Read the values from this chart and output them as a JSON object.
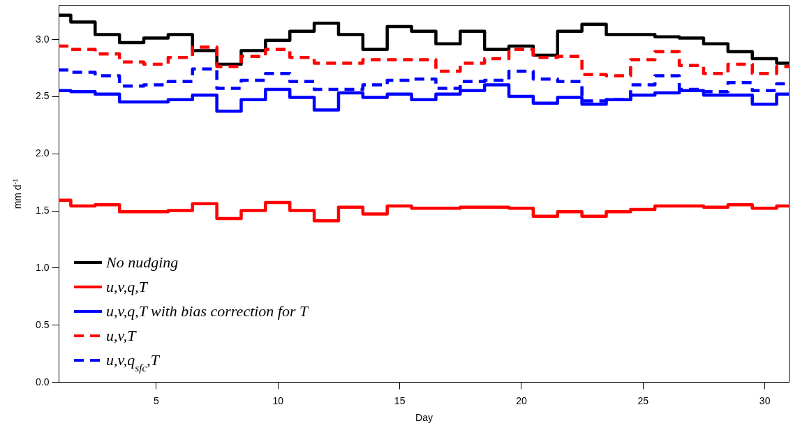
{
  "chart_data": {
    "type": "step",
    "xlabel": "Day",
    "ylabel": "mm d$^{-1}$",
    "x": [
      1,
      2,
      3,
      4,
      5,
      6,
      7,
      8,
      9,
      10,
      11,
      12,
      13,
      14,
      15,
      16,
      17,
      18,
      19,
      20,
      21,
      22,
      23,
      24,
      25,
      26,
      27,
      28,
      29,
      30,
      31
    ],
    "xlim": [
      1,
      31
    ],
    "xticks": [
      5,
      10,
      15,
      20,
      25,
      30
    ],
    "ylim": [
      0,
      3.3
    ],
    "yticks": [
      {
        "value": 0,
        "label": "0.0"
      },
      0.5,
      {
        "value": 1,
        "label": "1.0"
      },
      1.5,
      {
        "value": 2,
        "label": "2.0"
      },
      2.5,
      {
        "value": 3,
        "label": "3.0"
      }
    ],
    "grid": false,
    "legend": "bottom left",
    "series": [
      {
        "name": "No nudging",
        "color": "#000000",
        "line_style": "solid",
        "values": [
          3.21,
          3.15,
          3.04,
          2.97,
          3.01,
          3.04,
          2.9,
          2.78,
          2.9,
          2.99,
          3.07,
          3.14,
          3.04,
          2.91,
          3.11,
          3.07,
          2.96,
          3.07,
          2.91,
          2.94,
          2.86,
          3.07,
          3.13,
          3.04,
          3.04,
          3.02,
          3.01,
          2.96,
          2.89,
          2.83,
          2.79
        ]
      },
      {
        "name": "u,v,q,T",
        "color": "#ff0000",
        "line_style": "solid",
        "values": [
          1.59,
          1.54,
          1.55,
          1.49,
          1.49,
          1.5,
          1.56,
          1.43,
          1.5,
          1.57,
          1.5,
          1.41,
          1.53,
          1.47,
          1.54,
          1.52,
          1.52,
          1.53,
          1.53,
          1.52,
          1.45,
          1.49,
          1.45,
          1.49,
          1.51,
          1.54,
          1.54,
          1.53,
          1.55,
          1.52,
          1.54
        ]
      },
      {
        "name": "u,v,q,T with bias correction for T",
        "color": "#0000ff",
        "line_style": "solid",
        "values": [
          2.55,
          2.54,
          2.52,
          2.45,
          2.45,
          2.47,
          2.51,
          2.37,
          2.47,
          2.56,
          2.49,
          2.38,
          2.53,
          2.49,
          2.52,
          2.47,
          2.52,
          2.55,
          2.6,
          2.5,
          2.44,
          2.49,
          2.43,
          2.47,
          2.51,
          2.53,
          2.55,
          2.51,
          2.51,
          2.43,
          2.52
        ]
      },
      {
        "name": "u,v,T",
        "color": "#ff0000",
        "line_style": "dashed",
        "values": [
          2.94,
          2.91,
          2.87,
          2.8,
          2.78,
          2.84,
          2.93,
          2.76,
          2.85,
          2.91,
          2.84,
          2.79,
          2.79,
          2.82,
          2.82,
          2.82,
          2.72,
          2.79,
          2.83,
          2.91,
          2.84,
          2.85,
          2.69,
          2.68,
          2.82,
          2.89,
          2.77,
          2.7,
          2.78,
          2.7,
          2.76
        ]
      },
      {
        "name": "u,v,q$_{sfc}$,T",
        "color": "#0000ff",
        "line_style": "dashed",
        "values": [
          2.73,
          2.71,
          2.68,
          2.59,
          2.6,
          2.63,
          2.74,
          2.57,
          2.64,
          2.7,
          2.63,
          2.56,
          2.56,
          2.6,
          2.64,
          2.65,
          2.57,
          2.63,
          2.64,
          2.72,
          2.65,
          2.63,
          2.46,
          2.47,
          2.6,
          2.68,
          2.56,
          2.54,
          2.62,
          2.55,
          2.61
        ]
      }
    ]
  }
}
